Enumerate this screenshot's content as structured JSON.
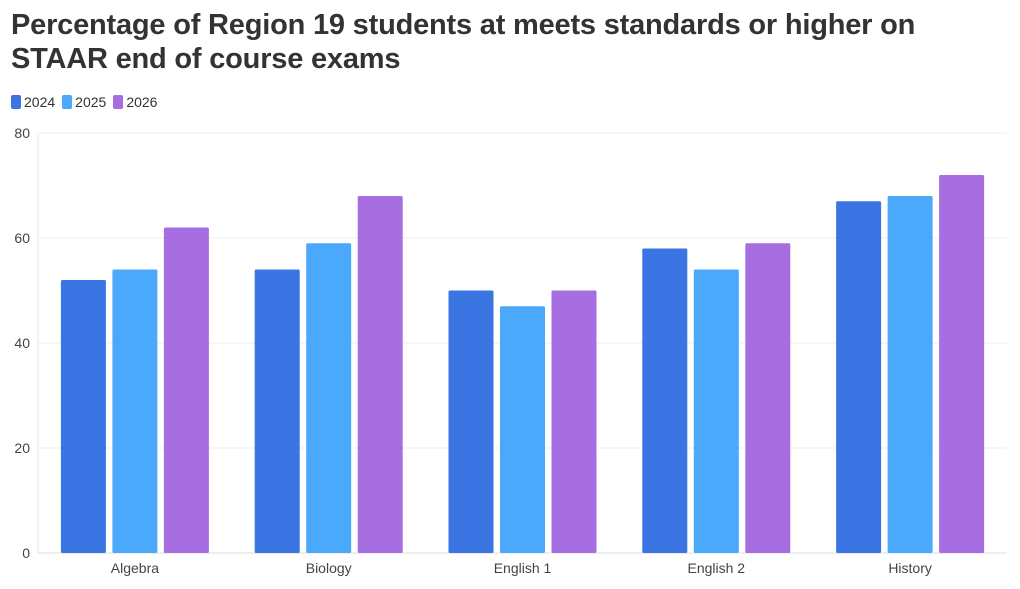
{
  "chart_data": {
    "type": "bar",
    "title": "Percentage of Region 19 students at meets standards or higher on STAAR end of course exams",
    "xlabel": "",
    "ylabel": "",
    "categories": [
      "Algebra",
      "Biology",
      "English 1",
      "English 2",
      "History"
    ],
    "series": [
      {
        "name": "2024",
        "color": "#3b74e3",
        "values": [
          52,
          54,
          50,
          58,
          67
        ]
      },
      {
        "name": "2025",
        "color": "#4ba9fc",
        "values": [
          54,
          59,
          47,
          54,
          68
        ]
      },
      {
        "name": "2026",
        "color": "#a66ee0",
        "values": [
          62,
          68,
          50,
          59,
          72
        ]
      }
    ],
    "ylim": [
      0,
      80
    ],
    "yticks": [
      "0",
      "20",
      "40",
      "60",
      "80"
    ],
    "grid": true,
    "legend_position": "top-left"
  }
}
